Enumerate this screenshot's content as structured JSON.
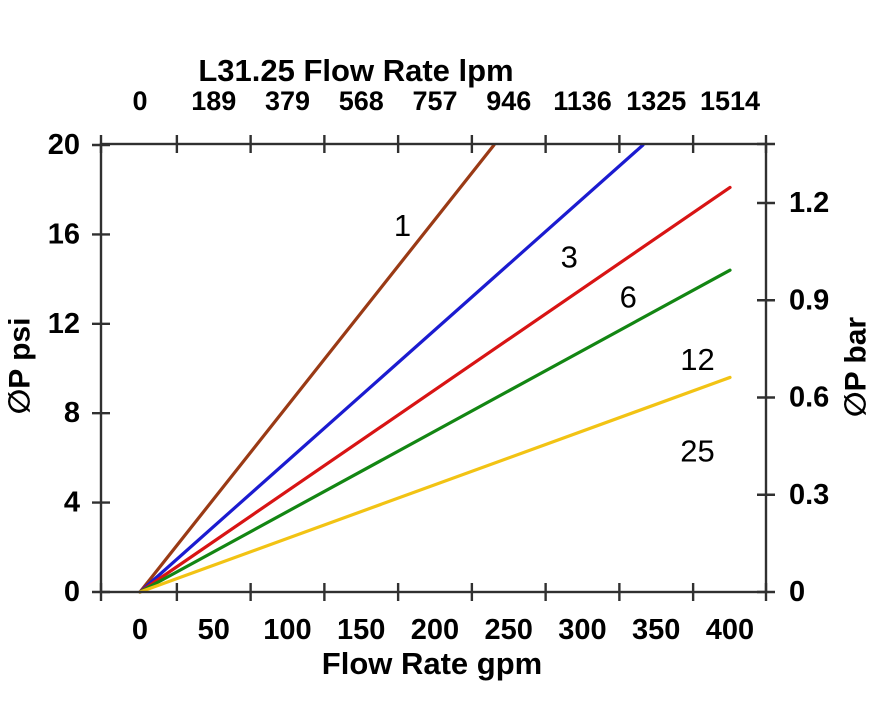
{
  "chart_data": {
    "type": "line",
    "title": "L31.25 Flow Rate lpm",
    "xlabel": "Flow Rate gpm",
    "ylabel_left": "∅P psi",
    "ylabel_right": "∅P bar",
    "x_axis_bottom": {
      "unit": "gpm",
      "tick_labels": [
        0,
        50,
        100,
        150,
        200,
        250,
        300,
        350,
        400
      ]
    },
    "x_axis_top": {
      "unit": "lpm",
      "tick_labels": [
        0,
        189,
        379,
        568,
        757,
        946,
        1136,
        1325,
        1514
      ]
    },
    "y_axis_left": {
      "unit": "psi",
      "tick_labels": [
        20,
        16,
        12,
        8,
        4,
        0
      ]
    },
    "y_axis_right": {
      "unit": "bar",
      "tick_labels": [
        1.2,
        0.9,
        0.6,
        0.3,
        0
      ]
    },
    "x_minor_ticks_gpm": [
      25,
      75,
      125,
      175,
      225,
      275,
      325,
      375
    ],
    "xlim_gpm": [
      0,
      400
    ],
    "ylim_psi": [
      0,
      20
    ],
    "psi_per_bar": 14.5038,
    "grid": "off",
    "legend": "inline-labels",
    "series": [
      {
        "label": "1",
        "color": "#9a3a15",
        "points_gpm_psi": [
          [
            0,
            0
          ],
          [
            240,
            20
          ]
        ],
        "label_pos_gpm_psi": [
          178,
          16.4
        ]
      },
      {
        "label": "3",
        "color": "#1b1bd0",
        "points_gpm_psi": [
          [
            0,
            0
          ],
          [
            341,
            20
          ]
        ],
        "label_pos_gpm_psi": [
          291,
          15.0
        ]
      },
      {
        "label": "6",
        "color": "#d81414",
        "points_gpm_psi": [
          [
            0,
            0
          ],
          [
            400,
            18.1
          ]
        ],
        "label_pos_gpm_psi": [
          331,
          13.2
        ]
      },
      {
        "label": "12",
        "color": "#138613",
        "points_gpm_psi": [
          [
            0,
            0
          ],
          [
            400,
            14.4
          ]
        ],
        "label_pos_gpm_psi": [
          378,
          10.4
        ]
      },
      {
        "label": "25",
        "color": "#f2c314",
        "points_gpm_psi": [
          [
            0,
            0
          ],
          [
            400,
            9.6
          ]
        ],
        "label_pos_gpm_psi": [
          378,
          6.3
        ]
      }
    ]
  }
}
